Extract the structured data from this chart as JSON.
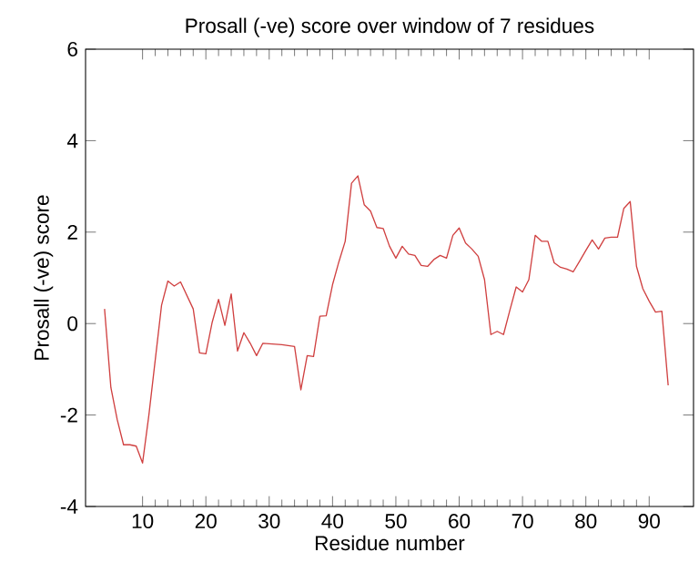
{
  "chart_data": {
    "type": "line",
    "title": "Prosall (-ve) score over window of 7 residues",
    "xlabel": "Residue number",
    "ylabel": "Prosall (-ve) score",
    "xlim": [
      1,
      97
    ],
    "xticks": [
      10,
      20,
      30,
      40,
      50,
      60,
      70,
      80,
      90
    ],
    "ylim": [
      -4,
      6
    ],
    "yticks": [
      -4,
      -2,
      0,
      2,
      4,
      6
    ],
    "grid": false,
    "marker": "none",
    "line_style": "solid",
    "series": [
      {
        "color": "#d04040",
        "x": [
          4,
          5,
          6,
          7,
          8,
          9,
          10,
          11,
          13,
          14,
          15,
          16,
          18,
          19,
          20,
          21,
          22,
          23,
          24,
          25,
          26,
          27,
          28,
          29,
          32,
          34,
          35,
          36,
          37,
          38,
          39,
          40,
          41,
          42,
          43,
          44,
          45,
          46,
          47,
          48,
          49,
          50,
          51,
          52,
          53,
          54,
          55,
          56,
          57,
          58,
          59,
          60,
          61,
          62,
          63,
          64,
          65,
          66,
          67,
          68,
          69,
          70,
          71,
          72,
          73,
          74,
          75,
          76,
          77,
          78,
          79,
          80,
          81,
          82,
          83,
          84,
          85,
          86,
          87,
          88,
          89,
          90,
          91,
          92,
          93
        ],
        "values": [
          0.32,
          -1.4,
          -2.1,
          -2.65,
          -2.65,
          -2.68,
          -3.05,
          -2.0,
          0.4,
          0.93,
          0.82,
          0.91,
          0.32,
          -0.64,
          -0.66,
          0.03,
          0.53,
          -0.04,
          0.65,
          -0.6,
          -0.2,
          -0.43,
          -0.7,
          -0.43,
          -0.46,
          -0.5,
          -1.45,
          -0.7,
          -0.72,
          0.16,
          0.17,
          0.85,
          1.35,
          1.8,
          3.07,
          3.23,
          2.6,
          2.46,
          2.1,
          2.08,
          1.69,
          1.43,
          1.69,
          1.52,
          1.49,
          1.27,
          1.25,
          1.4,
          1.49,
          1.43,
          1.93,
          2.09,
          1.76,
          1.63,
          1.47,
          0.96,
          -0.24,
          -0.17,
          -0.24,
          0.29,
          0.8,
          0.69,
          0.96,
          1.93,
          1.8,
          1.8,
          1.33,
          1.23,
          1.19,
          1.13,
          1.36,
          1.6,
          1.83,
          1.63,
          1.87,
          1.89,
          1.89,
          2.52,
          2.67,
          1.25,
          0.76,
          0.49,
          0.25,
          0.27,
          -1.35
        ]
      }
    ]
  }
}
